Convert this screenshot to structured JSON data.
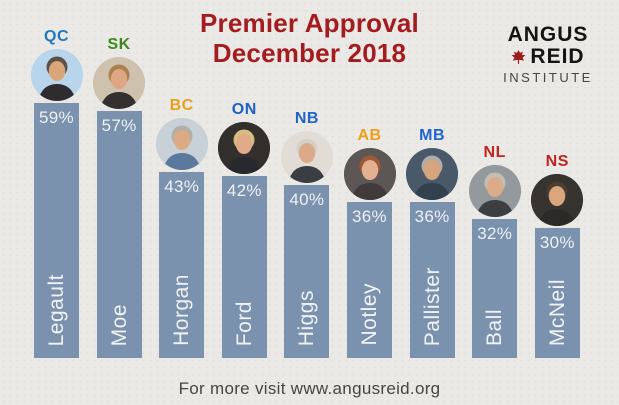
{
  "title": {
    "line1": "Premier Approval",
    "line2": "December 2018",
    "color": "#a41c20"
  },
  "logo": {
    "line1": "ANGUS",
    "line2": "REID",
    "line3": "INSTITUTE",
    "leaf_color": "#9e1b1b"
  },
  "footer": {
    "text": "For more visit www.angusreid.org"
  },
  "chart_data": {
    "type": "bar",
    "title": "Premier Approval December 2018",
    "categories": [
      "Legault",
      "Moe",
      "Horgan",
      "Ford",
      "Higgs",
      "Notley",
      "Pallister",
      "Ball",
      "McNeil"
    ],
    "province_labels": [
      "QC",
      "SK",
      "BC",
      "ON",
      "NB",
      "AB",
      "MB",
      "NL",
      "NS"
    ],
    "values": [
      59,
      57,
      43,
      42,
      40,
      36,
      36,
      32,
      30
    ],
    "value_suffix": "%",
    "ylim": [
      0,
      62
    ],
    "orientation": "vertical",
    "grid": false,
    "legend": false,
    "bar_color": "#7a92ad",
    "value_labels_position": "inside-top",
    "category_labels_position": "inside-bottom-rotated-90"
  },
  "premiers": [
    {
      "province": "QC",
      "province_color": "#1e78c2",
      "name": "Legault",
      "value": 59,
      "value_label": "59%",
      "photo": {
        "bg": "#b9d5ec",
        "skin": "#d9a679",
        "suit": "#2e2c2e",
        "hair": "#5c5147"
      }
    },
    {
      "province": "SK",
      "province_color": "#3c8a1d",
      "name": "Moe",
      "value": 57,
      "value_label": "57%",
      "photo": {
        "bg": "#cec2ae",
        "skin": "#dfa684",
        "suit": "#33302f",
        "hair": "#a9804f"
      }
    },
    {
      "province": "BC",
      "province_color": "#e8a01c",
      "name": "Horgan",
      "value": 43,
      "value_label": "43%",
      "photo": {
        "bg": "#c7d1d7",
        "skin": "#dcab84",
        "suit": "#5a799c",
        "hair": "#b3afa7"
      }
    },
    {
      "province": "ON",
      "province_color": "#1b62c6",
      "name": "Ford",
      "value": 42,
      "value_label": "42%",
      "photo": {
        "bg": "#332f2c",
        "skin": "#e0ab88",
        "suit": "#27292e",
        "hair": "#d6bd7d"
      }
    },
    {
      "province": "NB",
      "province_color": "#2166c8",
      "name": "Higgs",
      "value": 40,
      "value_label": "40%",
      "photo": {
        "bg": "#e1ddd6",
        "skin": "#dca98a",
        "suit": "#3a3d42",
        "hair": "#d5d1c8"
      }
    },
    {
      "province": "AB",
      "province_color": "#ec9f1b",
      "name": "Notley",
      "value": 36,
      "value_label": "36%",
      "photo": {
        "bg": "#5c5755",
        "skin": "#e3b091",
        "suit": "#403a3c",
        "hair": "#9c5938"
      }
    },
    {
      "province": "MB",
      "province_color": "#2065cf",
      "name": "Pallister",
      "value": 36,
      "value_label": "36%",
      "photo": {
        "bg": "#49596a",
        "skin": "#d8a47e",
        "suit": "#33404e",
        "hair": "#b1ada4"
      }
    },
    {
      "province": "NL",
      "province_color": "#c1241f",
      "name": "Ball",
      "value": 32,
      "value_label": "32%",
      "photo": {
        "bg": "#94999d",
        "skin": "#dcab88",
        "suit": "#3c3e42",
        "hair": "#c3bfb7"
      }
    },
    {
      "province": "NS",
      "province_color": "#c1241f",
      "name": "McNeil",
      "value": 30,
      "value_label": "30%",
      "photo": {
        "bg": "#37332f",
        "skin": "#d9a67e",
        "suit": "#2c2a28",
        "hair": "#4c3e30"
      }
    }
  ]
}
